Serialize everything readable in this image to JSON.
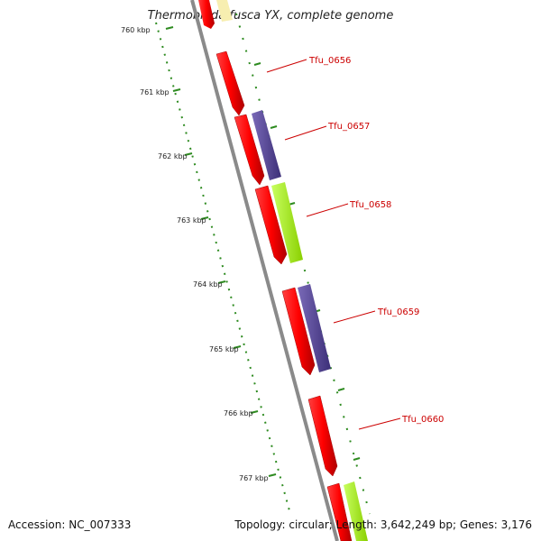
{
  "title": "Thermobifida fusca YX, complete genome",
  "accession": "Accession: NC_007333",
  "topology": "Topology: circular; Length: 3,642,249 bp; Genes: 3,176",
  "colors": {
    "backbone": "#8a8a8a",
    "scale": "#2e8b20",
    "forward_gene": "#ff0000",
    "purple_gene": "#5a4a9a",
    "green_gene": "#adff2f",
    "label": "#cc0000"
  },
  "scale_labels": [
    "760 kbp",
    "761 kbp",
    "762 kbp",
    "763 kbp",
    "764 kbp",
    "765 kbp",
    "766 kbp",
    "767 kbp"
  ],
  "gene_labels": [
    "Tfu_0656",
    "Tfu_0657",
    "Tfu_0658",
    "Tfu_0659",
    "Tfu_0660"
  ]
}
